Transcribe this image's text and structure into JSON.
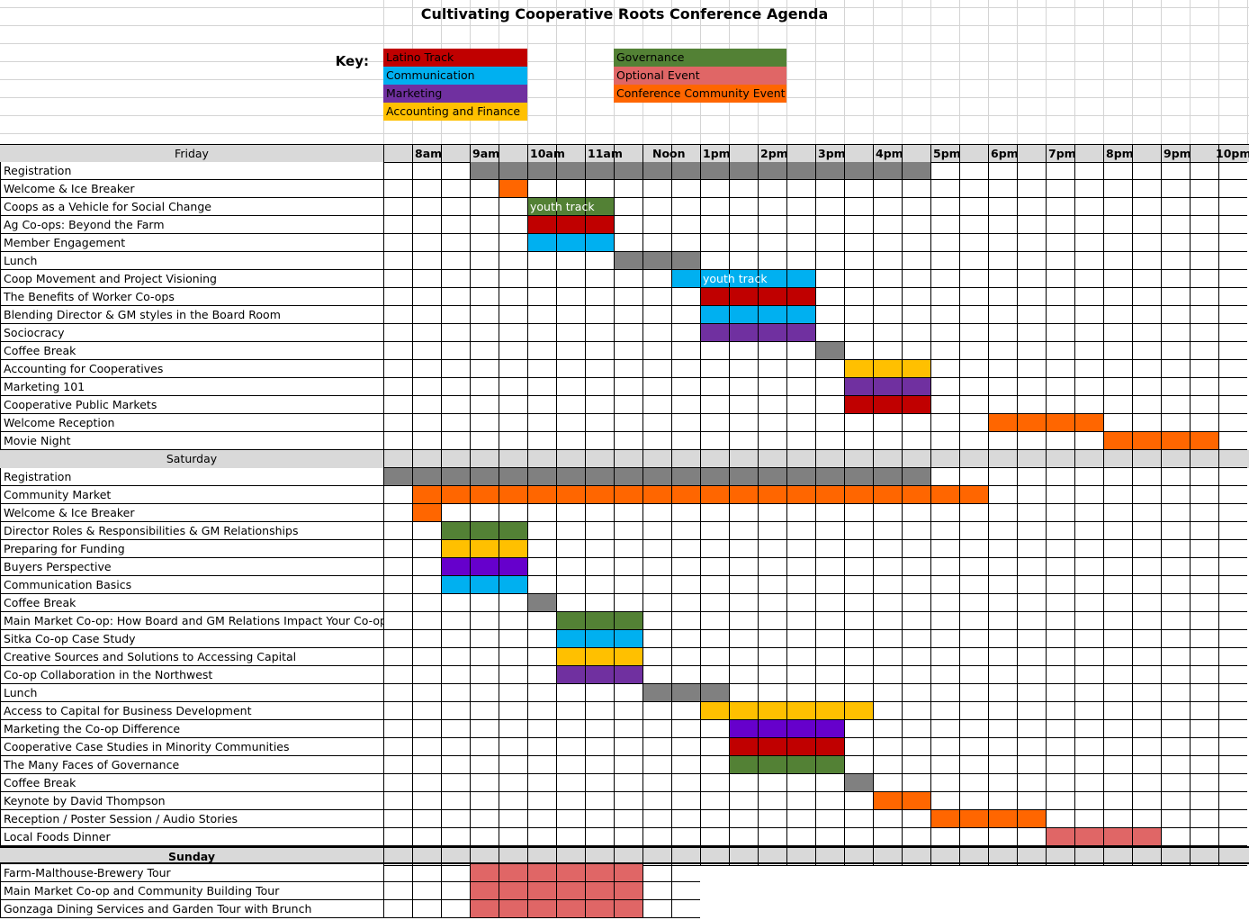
{
  "title": "Cultivating Cooperative Roots Conference Agenda",
  "key": {
    "label": "Key:",
    "items": [
      {
        "name": "Latino Track",
        "color": "#C00000",
        "col": 0
      },
      {
        "name": "Communication",
        "color": "#00B0F0",
        "col": 0
      },
      {
        "name": "Marketing",
        "color": "#7030A0",
        "col": 0
      },
      {
        "name": "Accounting and Finance",
        "color": "#FFC000",
        "col": 0
      },
      {
        "name": "Governance",
        "color": "#538135",
        "col": 1
      },
      {
        "name": "Optional Event",
        "color": "#E06666",
        "col": 1
      },
      {
        "name": "Conference Community Event",
        "color": "#FF6600",
        "col": 1
      }
    ]
  },
  "colors": {
    "gray": "#808080",
    "orange": "#FF6600",
    "red": "#C00000",
    "blue": "#00B0F0",
    "purple": "#7030A0",
    "violet": "#6600CC",
    "yellow": "#FFC000",
    "green": "#538135",
    "pink": "#E06666",
    "header": "#D9D9D9"
  },
  "hours": [
    "8am",
    "9am",
    "10am",
    "11am",
    "Noon",
    "1pm",
    "2pm",
    "3pm",
    "4pm",
    "5pm",
    "6pm",
    "7pm",
    "8pm",
    "9pm",
    "10pm"
  ],
  "days": [
    {
      "name": "Friday",
      "bold": false,
      "rows": [
        {
          "name": "Registration",
          "span": [
            [
              3,
              19,
              "gray"
            ]
          ]
        },
        {
          "name": "Welcome & Ice Breaker",
          "span": [
            [
              4,
              5,
              "orange"
            ]
          ]
        },
        {
          "name": "Coops as a Vehicle for Social Change",
          "span": [
            [
              5,
              8,
              "green"
            ]
          ],
          "inline": "youth track"
        },
        {
          "name": "Ag Co-ops: Beyond the Farm",
          "span": [
            [
              5,
              8,
              "red"
            ]
          ]
        },
        {
          "name": "Member Engagement",
          "span": [
            [
              5,
              8,
              "blue"
            ]
          ]
        },
        {
          "name": "Lunch",
          "span": [
            [
              8,
              11,
              "gray"
            ]
          ]
        },
        {
          "name": "Coop Movement and Project Visioning",
          "span": [
            [
              10,
              15,
              "blue"
            ]
          ],
          "inline": "youth track",
          "inline_col": 11
        },
        {
          "name": "The Benefits of Worker Co-ops",
          "span": [
            [
              11,
              15,
              "red"
            ]
          ]
        },
        {
          "name": "Blending Director & GM styles in the Board Room",
          "span": [
            [
              11,
              15,
              "blue"
            ]
          ]
        },
        {
          "name": "Sociocracy",
          "span": [
            [
              11,
              15,
              "purple"
            ]
          ]
        },
        {
          "name": "Coffee Break",
          "span": [
            [
              15,
              16,
              "gray"
            ]
          ]
        },
        {
          "name": "Accounting for Cooperatives",
          "span": [
            [
              16,
              19,
              "yellow"
            ]
          ]
        },
        {
          "name": "Marketing 101",
          "span": [
            [
              16,
              19,
              "purple"
            ]
          ]
        },
        {
          "name": "Cooperative Public Markets",
          "span": [
            [
              16,
              19,
              "red"
            ]
          ]
        },
        {
          "name": "Welcome Reception",
          "span": [
            [
              21,
              25,
              "orange"
            ]
          ]
        },
        {
          "name": "Movie Night",
          "span": [
            [
              25,
              29,
              "orange"
            ]
          ]
        }
      ]
    },
    {
      "name": "Saturday",
      "bold": false,
      "rows": [
        {
          "name": "Registration",
          "span": [
            [
              0,
              19,
              "gray"
            ]
          ]
        },
        {
          "name": "Community Market",
          "span": [
            [
              1,
              21,
              "orange"
            ]
          ]
        },
        {
          "name": "Welcome & Ice Breaker",
          "span": [
            [
              1,
              2,
              "orange"
            ]
          ]
        },
        {
          "name": "Director Roles & Responsibilities & GM Relationships",
          "span": [
            [
              2,
              5,
              "green"
            ]
          ]
        },
        {
          "name": "Preparing for Funding",
          "span": [
            [
              2,
              5,
              "yellow"
            ]
          ]
        },
        {
          "name": "Buyers Perspective",
          "span": [
            [
              2,
              5,
              "violet"
            ]
          ]
        },
        {
          "name": "Communication Basics",
          "span": [
            [
              2,
              5,
              "blue"
            ]
          ]
        },
        {
          "name": "Coffee Break",
          "span": [
            [
              5,
              6,
              "gray"
            ]
          ]
        },
        {
          "name": "Main Market Co-op: How Board and GM Relations Impact Your Co-op",
          "span": [
            [
              6,
              9,
              "green"
            ]
          ]
        },
        {
          "name": "Sitka Co-op Case Study",
          "span": [
            [
              6,
              9,
              "blue"
            ]
          ]
        },
        {
          "name": "Creative Sources and Solutions to Accessing Capital",
          "span": [
            [
              6,
              9,
              "yellow"
            ]
          ]
        },
        {
          "name": "Co-op Collaboration in the Northwest",
          "span": [
            [
              6,
              9,
              "purple"
            ]
          ]
        },
        {
          "name": "Lunch",
          "span": [
            [
              9,
              12,
              "gray"
            ]
          ]
        },
        {
          "name": "Access to Capital for Business Development",
          "span": [
            [
              11,
              17,
              "yellow"
            ]
          ]
        },
        {
          "name": "Marketing the Co-op Difference",
          "span": [
            [
              12,
              16,
              "violet"
            ]
          ]
        },
        {
          "name": "Cooperative Case Studies in Minority Communities",
          "span": [
            [
              12,
              16,
              "red"
            ]
          ]
        },
        {
          "name": "The Many Faces of Governance",
          "span": [
            [
              12,
              16,
              "green"
            ]
          ]
        },
        {
          "name": "Coffee Break",
          "span": [
            [
              16,
              17,
              "gray"
            ]
          ]
        },
        {
          "name": "Keynote by David Thompson",
          "span": [
            [
              17,
              19,
              "orange"
            ]
          ]
        },
        {
          "name": "Reception / Poster Session / Audio Stories",
          "span": [
            [
              19,
              23,
              "orange"
            ]
          ]
        },
        {
          "name": "Local Foods Dinner",
          "span": [
            [
              23,
              27,
              "pink"
            ]
          ]
        }
      ]
    },
    {
      "name": "Sunday",
      "bold": true,
      "rows": [
        {
          "name": "Farm-Malthouse-Brewery Tour",
          "span": [
            [
              3,
              9,
              "pink"
            ]
          ]
        },
        {
          "name": "Main Market Co-op and Community Building Tour",
          "span": [
            [
              3,
              9,
              "pink"
            ]
          ]
        },
        {
          "name": "Gonzaga Dining Services and Garden Tour with Brunch",
          "span": [
            [
              3,
              9,
              "pink"
            ]
          ]
        }
      ]
    }
  ]
}
